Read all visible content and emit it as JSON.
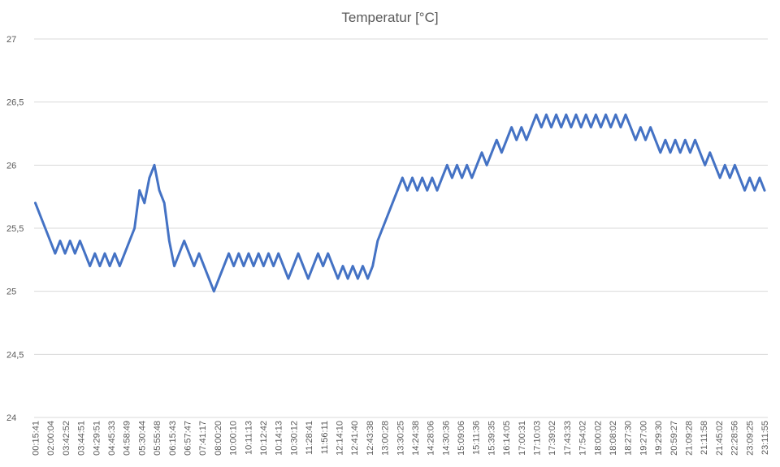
{
  "chart_data": {
    "type": "line",
    "title": "Temperatur [°C]",
    "xlabel": "",
    "ylabel": "",
    "ylim": [
      24,
      27
    ],
    "y_ticks": [
      "24",
      "24,5",
      "25",
      "25,5",
      "26",
      "26,5",
      "27"
    ],
    "y_tick_values": [
      24,
      24.5,
      25,
      25.5,
      26,
      26.5,
      27
    ],
    "x_tick_labels": [
      "00:15:41",
      "02:00:04",
      "03:42:52",
      "03:44:51",
      "04:29:51",
      "04:45:33",
      "04:58:49",
      "05:30:44",
      "05:55:48",
      "06:15:43",
      "06:57:47",
      "07:41:17",
      "08:00:20",
      "10:00:10",
      "10:11:13",
      "10:12:42",
      "10:14:13",
      "10:30:12",
      "11:28:41",
      "11:56:11",
      "12:14:10",
      "12:41:40",
      "12:43:38",
      "13:00:28",
      "13:30:25",
      "14:24:38",
      "14:28:06",
      "14:30:36",
      "15:09:06",
      "15:11:36",
      "15:39:35",
      "16:14:05",
      "17:00:31",
      "17:10:03",
      "17:39:02",
      "17:43:33",
      "17:54:02",
      "18:00:02",
      "18:08:02",
      "18:27:30",
      "19:27:00",
      "19:29:30",
      "20:59:27",
      "21:09:28",
      "21:11:58",
      "21:45:02",
      "22:28:56",
      "23:09:25",
      "23:11:55"
    ],
    "grid": true,
    "legend": "none",
    "series": [
      {
        "color": "#4472c4",
        "values": [
          25.7,
          25.6,
          25.5,
          25.4,
          25.3,
          25.4,
          25.3,
          25.4,
          25.3,
          25.4,
          25.3,
          25.2,
          25.3,
          25.2,
          25.3,
          25.2,
          25.3,
          25.2,
          25.3,
          25.4,
          25.5,
          25.8,
          25.7,
          25.9,
          26.0,
          25.8,
          25.7,
          25.4,
          25.2,
          25.3,
          25.4,
          25.3,
          25.2,
          25.3,
          25.2,
          25.1,
          25.0,
          25.1,
          25.2,
          25.3,
          25.2,
          25.3,
          25.2,
          25.3,
          25.2,
          25.3,
          25.2,
          25.3,
          25.2,
          25.3,
          25.2,
          25.1,
          25.2,
          25.3,
          25.2,
          25.1,
          25.2,
          25.3,
          25.2,
          25.3,
          25.2,
          25.1,
          25.2,
          25.1,
          25.2,
          25.1,
          25.2,
          25.1,
          25.2,
          25.4,
          25.5,
          25.6,
          25.7,
          25.8,
          25.9,
          25.8,
          25.9,
          25.8,
          25.9,
          25.8,
          25.9,
          25.8,
          25.9,
          26.0,
          25.9,
          26.0,
          25.9,
          26.0,
          25.9,
          26.0,
          26.1,
          26.0,
          26.1,
          26.2,
          26.1,
          26.2,
          26.3,
          26.2,
          26.3,
          26.2,
          26.3,
          26.4,
          26.3,
          26.4,
          26.3,
          26.4,
          26.3,
          26.4,
          26.3,
          26.4,
          26.3,
          26.4,
          26.3,
          26.4,
          26.3,
          26.4,
          26.3,
          26.4,
          26.3,
          26.4,
          26.3,
          26.2,
          26.3,
          26.2,
          26.3,
          26.2,
          26.1,
          26.2,
          26.1,
          26.2,
          26.1,
          26.2,
          26.1,
          26.2,
          26.1,
          26.0,
          26.1,
          26.0,
          25.9,
          26.0,
          25.9,
          26.0,
          25.9,
          25.8,
          25.9,
          25.8,
          25.9,
          25.8
        ]
      }
    ]
  }
}
